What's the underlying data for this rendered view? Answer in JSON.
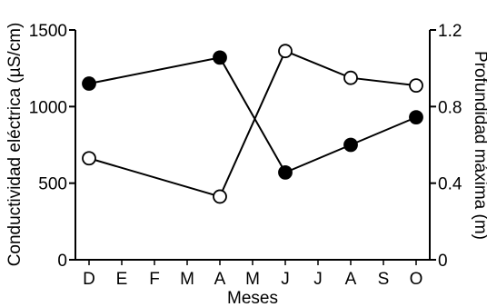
{
  "chart_data": {
    "type": "line",
    "xlabel": "Meses",
    "ylabel": "Conductividad eléctrica (µS/cm)",
    "y2label": "Profundidad máxima (m)",
    "categories": [
      "D",
      "E",
      "F",
      "M",
      "A",
      "M",
      "J",
      "J",
      "A",
      "S",
      "O"
    ],
    "ylim": [
      0,
      1500
    ],
    "y2lim": [
      0,
      1.2
    ],
    "yticks": [
      "0",
      "500",
      "1000",
      "1500"
    ],
    "y2ticks": [
      "0",
      "0.4",
      "0.8",
      "1.2"
    ],
    "series": [
      {
        "axis": "left",
        "marker": "filled-circle",
        "color": "#000000",
        "points": [
          {
            "x": "D",
            "y": 1150
          },
          {
            "x": "A",
            "y": 1320
          },
          {
            "x": "J",
            "y": 570
          },
          {
            "x": "A",
            "y": 750
          },
          {
            "x": "O",
            "y": 930
          }
        ]
      },
      {
        "axis": "right",
        "marker": "open-circle",
        "color": "#000000",
        "points": [
          {
            "x": "D",
            "y": 0.53
          },
          {
            "x": "A",
            "y": 0.33
          },
          {
            "x": "J",
            "y": 1.09
          },
          {
            "x": "A",
            "y": 0.95
          },
          {
            "x": "O",
            "y": 0.91
          }
        ]
      }
    ],
    "grid": false,
    "legend": "none"
  }
}
